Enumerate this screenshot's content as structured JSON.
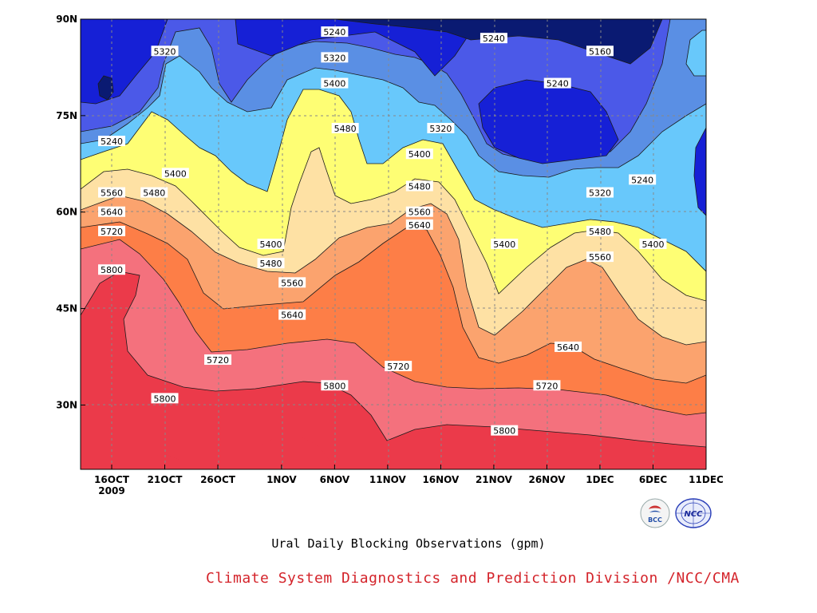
{
  "chart_data": {
    "type": "contour",
    "title": "",
    "xlabel": "",
    "ylabel": "",
    "x_ticks": [
      "16OCT",
      "21OCT",
      "26OCT",
      "1NOV",
      "6NOV",
      "11NOV",
      "16NOV",
      "21NOV",
      "26NOV",
      "1DEC",
      "6DEC",
      "11DEC"
    ],
    "x_year_label": "2009",
    "y_ticks": [
      "30N",
      "45N",
      "60N",
      "75N",
      "90N"
    ],
    "ylim_degrees_north": [
      20,
      90
    ],
    "fill_colors": [
      "#eb3a4a",
      "#f4717d",
      "#fd7e47",
      "#fba36e",
      "#fee1a4",
      "#fefe74",
      "#68c8fb",
      "#5a8fe4",
      "#4b59e8",
      "#1620d6",
      "#0a1a72"
    ],
    "contour_labels": [
      {
        "value": "5320",
        "date": "21OCT",
        "lat_n": 85
      },
      {
        "value": "5240",
        "date": "6NOV",
        "lat_n": 88
      },
      {
        "value": "5320",
        "date": "6NOV",
        "lat_n": 84
      },
      {
        "value": "5400",
        "date": "6NOV",
        "lat_n": 80
      },
      {
        "value": "5240",
        "date": "21NOV",
        "lat_n": 87
      },
      {
        "value": "5160",
        "date": "1DEC",
        "lat_n": 85
      },
      {
        "value": "5240",
        "date": "27NOV",
        "lat_n": 80
      },
      {
        "value": "5240",
        "date": "16OCT",
        "lat_n": 71
      },
      {
        "value": "5480",
        "date": "7NOV",
        "lat_n": 73
      },
      {
        "value": "5320",
        "date": "16NOV",
        "lat_n": 73
      },
      {
        "value": "5400",
        "date": "14NOV",
        "lat_n": 69
      },
      {
        "value": "5400",
        "date": "22OCT",
        "lat_n": 66
      },
      {
        "value": "5480",
        "date": "14NOV",
        "lat_n": 64
      },
      {
        "value": "5240",
        "date": "5DEC",
        "lat_n": 65
      },
      {
        "value": "5320",
        "date": "1DEC",
        "lat_n": 63
      },
      {
        "value": "5560",
        "date": "16OCT",
        "lat_n": 63
      },
      {
        "value": "5480",
        "date": "20OCT",
        "lat_n": 63
      },
      {
        "value": "5560",
        "date": "14NOV",
        "lat_n": 60
      },
      {
        "value": "5640",
        "date": "16OCT",
        "lat_n": 60
      },
      {
        "value": "5640",
        "date": "14NOV",
        "lat_n": 58
      },
      {
        "value": "5720",
        "date": "16OCT",
        "lat_n": 57
      },
      {
        "value": "5480",
        "date": "1DEC",
        "lat_n": 57
      },
      {
        "value": "5400",
        "date": "22NOV",
        "lat_n": 55
      },
      {
        "value": "5400",
        "date": "6DEC",
        "lat_n": 55
      },
      {
        "value": "5400",
        "date": "31OCT",
        "lat_n": 55
      },
      {
        "value": "5560",
        "date": "1DEC",
        "lat_n": 53
      },
      {
        "value": "5480",
        "date": "31OCT",
        "lat_n": 52
      },
      {
        "value": "5800",
        "date": "16OCT",
        "lat_n": 51
      },
      {
        "value": "5560",
        "date": "2NOV",
        "lat_n": 49
      },
      {
        "value": "5640",
        "date": "2NOV",
        "lat_n": 44
      },
      {
        "value": "5640",
        "date": "28NOV",
        "lat_n": 39
      },
      {
        "value": "5720",
        "date": "26OCT",
        "lat_n": 37
      },
      {
        "value": "5720",
        "date": "12NOV",
        "lat_n": 36
      },
      {
        "value": "5800",
        "date": "6NOV",
        "lat_n": 33
      },
      {
        "value": "5720",
        "date": "26NOV",
        "lat_n": 33
      },
      {
        "value": "5800",
        "date": "21OCT",
        "lat_n": 31
      },
      {
        "value": "5800",
        "date": "22NOV",
        "lat_n": 26
      }
    ]
  },
  "caption": "Ural Daily Blocking Observations (gpm)",
  "credit": "Climate System Diagnostics and Prediction Division /NCC/CMA",
  "logos": {
    "left": {
      "name": "bcc-logo",
      "text": "BCC"
    },
    "right": {
      "name": "ncc-logo",
      "text": "NCC"
    }
  }
}
